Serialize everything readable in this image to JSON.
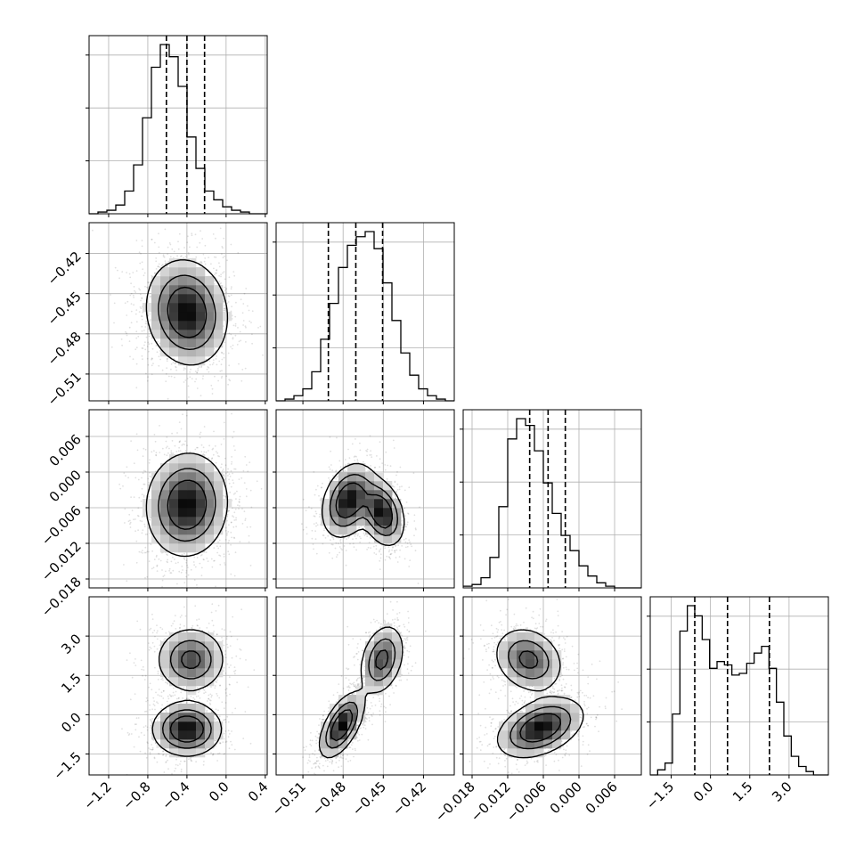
{
  "chart_data": {
    "type": "corner",
    "grid": true,
    "parameters": [
      {
        "ticks": [
          -1.2,
          -0.8,
          -0.4,
          0.0,
          0.4
        ],
        "tick_labels": [
          "−1.2",
          "−0.8",
          "−0.4",
          "0.0",
          "0.4"
        ],
        "range": [
          -1.4,
          0.42
        ],
        "quantiles": [
          -0.61,
          -0.4,
          -0.22
        ]
      },
      {
        "ticks": [
          -0.51,
          -0.48,
          -0.45,
          -0.42
        ],
        "tick_labels": [
          "−0.51",
          "−0.48",
          "−0.45",
          "−0.42"
        ],
        "range": [
          -0.53,
          -0.397
        ],
        "quantiles": [
          -0.491,
          -0.4705,
          -0.4505
        ]
      },
      {
        "ticks": [
          -0.018,
          -0.012,
          -0.006,
          0.0,
          0.006
        ],
        "tick_labels": [
          "−0.018",
          "−0.012",
          "−0.006",
          "0.000",
          "0.006"
        ],
        "range": [
          -0.0195,
          0.0105
        ],
        "quantiles": [
          -0.0083,
          -0.0052,
          -0.0023
        ]
      },
      {
        "ticks": [
          -1.5,
          0.0,
          1.5,
          3.0
        ],
        "tick_labels": [
          "−1.5",
          "0.0",
          "1.5",
          "3.0"
        ],
        "range": [
          -2.3,
          4.5
        ],
        "quantiles": [
          -0.6,
          0.65,
          2.25
        ]
      }
    ],
    "histograms": [
      [
        0,
        1,
        2,
        5,
        13,
        28,
        55,
        84,
        97,
        90,
        73,
        44,
        26,
        13,
        8,
        4,
        2,
        1,
        0,
        0
      ],
      [
        0,
        1,
        3,
        7,
        17,
        36,
        57,
        78,
        91,
        96,
        99,
        89,
        69,
        47,
        28,
        15,
        7,
        3,
        1,
        0
      ],
      [
        1,
        2,
        6,
        18,
        48,
        88,
        100,
        96,
        81,
        62,
        44,
        31,
        22,
        13,
        7,
        3,
        1,
        0,
        0,
        0
      ],
      [
        0,
        3,
        7,
        36,
        85,
        100,
        94,
        80,
        63,
        67,
        65,
        59,
        60,
        66,
        72,
        76,
        63,
        43,
        23,
        11,
        5,
        2,
        0,
        0
      ]
    ],
    "pairs": [
      {
        "x": 0,
        "y": 1,
        "modes": [
          {
            "cx": -0.4,
            "cy": -0.464,
            "sx": 0.2,
            "sy": 0.019,
            "rho": -0.1,
            "w": 1
          }
        ]
      },
      {
        "x": 0,
        "y": 2,
        "modes": [
          {
            "cx": -0.4,
            "cy": -0.0055,
            "sx": 0.2,
            "sy": 0.0042,
            "rho": 0.05,
            "w": 1
          }
        ]
      },
      {
        "x": 0,
        "y": 3,
        "modes": [
          {
            "cx": -0.4,
            "cy": -0.55,
            "sx": 0.17,
            "sy": 0.5,
            "rho": 0.0,
            "w": 0.58
          },
          {
            "cx": -0.36,
            "cy": 2.1,
            "sx": 0.17,
            "sy": 0.6,
            "rho": 0.0,
            "w": 0.42
          }
        ]
      },
      {
        "x": 1,
        "y": 2,
        "modes": [
          {
            "cx": -0.476,
            "cy": -0.0048,
            "sx": 0.0095,
            "sy": 0.003,
            "rho": 0.3,
            "w": 0.5
          },
          {
            "cx": -0.451,
            "cy": -0.0068,
            "sx": 0.008,
            "sy": 0.0027,
            "rho": -0.3,
            "w": 0.5
          }
        ]
      },
      {
        "x": 1,
        "y": 3,
        "modes": [
          {
            "cx": -0.481,
            "cy": -0.4,
            "sx": 0.008,
            "sy": 0.6,
            "rho": 0.6,
            "w": 0.58
          },
          {
            "cx": -0.451,
            "cy": 2.1,
            "sx": 0.008,
            "sy": 0.65,
            "rho": 0.3,
            "w": 0.42
          }
        ]
      },
      {
        "x": 2,
        "y": 3,
        "modes": [
          {
            "cx": -0.0065,
            "cy": -0.5,
            "sx": 0.0035,
            "sy": 0.55,
            "rho": 0.4,
            "w": 0.58
          },
          {
            "cx": -0.0085,
            "cy": 2.1,
            "sx": 0.0028,
            "sy": 0.6,
            "rho": -0.2,
            "w": 0.42
          }
        ]
      }
    ]
  }
}
